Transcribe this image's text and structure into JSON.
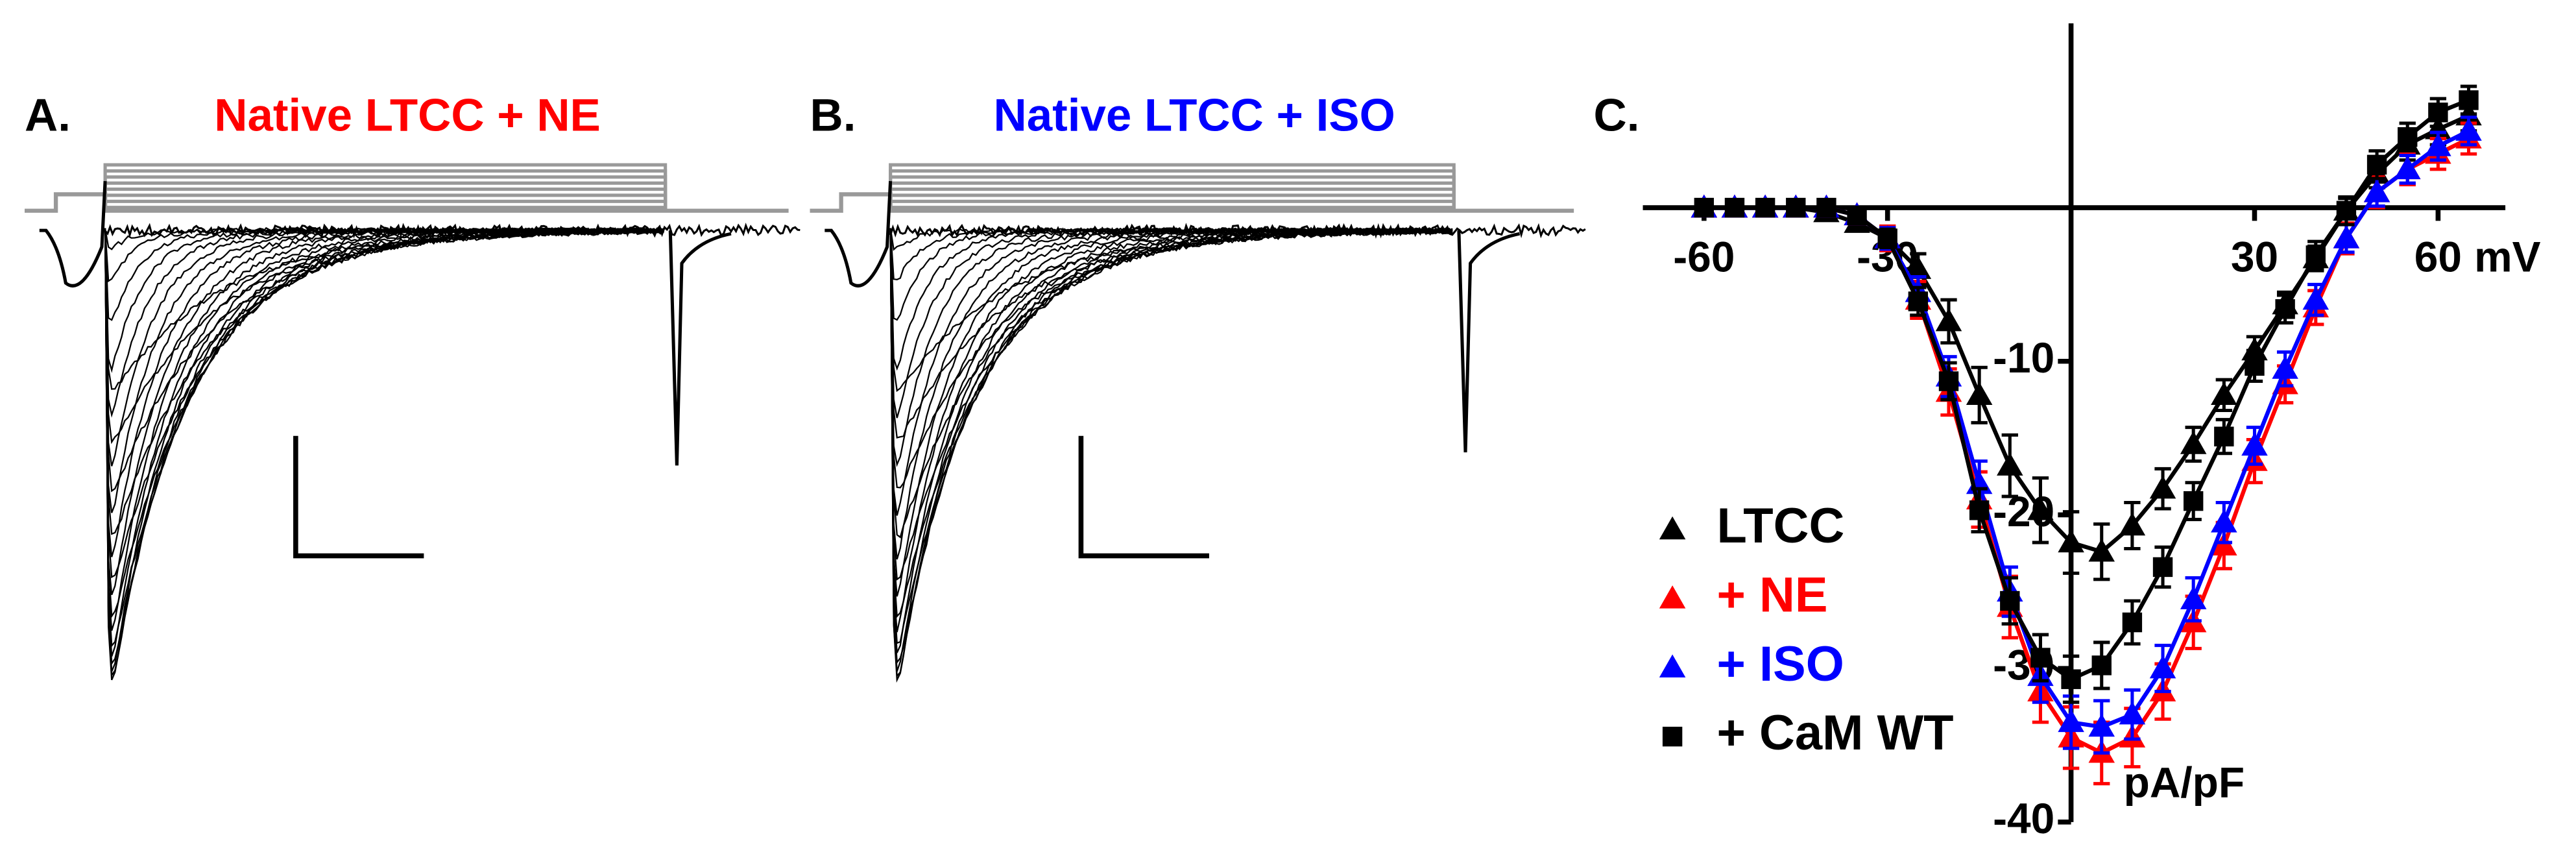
{
  "panels": [
    {
      "label": "A.",
      "title": "Native LTCC + NE",
      "title_color": "#ff0000"
    },
    {
      "label": "B.",
      "title": "Native LTCC + ISO",
      "title_color": "#0000ff"
    }
  ],
  "chart_data": {
    "type": "line",
    "label": "C.",
    "x_unit": "mV",
    "y_unit": "pA/pF",
    "x": [
      -60,
      -55,
      -50,
      -45,
      -40,
      -35,
      -30,
      -25,
      -20,
      -15,
      -10,
      -5,
      0,
      5,
      10,
      15,
      20,
      25,
      30,
      35,
      40,
      45,
      50,
      55,
      60,
      65
    ],
    "xlim": [
      -70,
      71
    ],
    "xticks": [
      -60,
      -30,
      30,
      60
    ],
    "ylim": [
      -40,
      12
    ],
    "yticks": [
      -10,
      -20,
      -30,
      -40
    ],
    "legend": "lower left",
    "series": [
      {
        "name": "LTCC",
        "color": "#000000",
        "marker": "triangle",
        "values": [
          0,
          0,
          0,
          0,
          -0.3,
          -1,
          -2,
          -4,
          -7.4,
          -12.2,
          -16.8,
          -19.7,
          -21.8,
          -22.4,
          -20.7,
          -18.3,
          -15.4,
          -12.2,
          -9.3,
          -6.3,
          -3.3,
          -0.2,
          2.2,
          4.1,
          5.1,
          6.0
        ],
        "errors": [
          0.3,
          0.3,
          0.3,
          0.3,
          0.4,
          0.5,
          0.7,
          1.0,
          1.4,
          1.8,
          2.0,
          2.1,
          2.0,
          1.8,
          1.5,
          1.3,
          1.1,
          1.0,
          0.9,
          0.8,
          0.8,
          0.8,
          0.9,
          1.0,
          1.0,
          1.0
        ]
      },
      {
        "name": "+ NE",
        "color": "#ff0000",
        "marker": "triangle",
        "values": [
          0,
          0,
          0,
          0,
          0,
          -0.5,
          -2,
          -6,
          -12,
          -19,
          -26,
          -31.5,
          -34.5,
          -35.5,
          -34.5,
          -31.5,
          -27,
          -22,
          -16.5,
          -11.5,
          -6.5,
          -2,
          1,
          2.5,
          3.5,
          4.5
        ],
        "errors": [
          0.3,
          0.3,
          0.3,
          0.3,
          0.3,
          0.5,
          0.8,
          1.2,
          1.5,
          1.8,
          2.0,
          2.0,
          2.0,
          2.0,
          1.9,
          1.8,
          1.7,
          1.5,
          1.4,
          1.2,
          1.1,
          1.0,
          1.0,
          1.0,
          1.0,
          1.0
        ]
      },
      {
        "name": "+ ISO",
        "color": "#0000ff",
        "marker": "triangle",
        "values": [
          0,
          0,
          0,
          0,
          0,
          -0.5,
          -2,
          -5.5,
          -11,
          -18,
          -25,
          -30.5,
          -33.5,
          -33.8,
          -33,
          -30,
          -25.5,
          -20.5,
          -15.5,
          -10.5,
          -6,
          -2,
          1,
          2.5,
          4,
          5
        ],
        "errors": [
          0.3,
          0.3,
          0.3,
          0.3,
          0.3,
          0.4,
          0.7,
          1.0,
          1.3,
          1.5,
          1.6,
          1.7,
          1.7,
          1.7,
          1.6,
          1.5,
          1.4,
          1.3,
          1.2,
          1.1,
          1.0,
          0.9,
          0.9,
          0.9,
          0.9,
          0.9
        ]
      },
      {
        "name": "+ CaM WT",
        "color": "#000000",
        "marker": "square",
        "values": [
          0,
          0,
          0,
          0,
          0,
          -0.5,
          -2,
          -6.1,
          -11.3,
          -19.7,
          -25.6,
          -29.3,
          -30.7,
          -29.8,
          -27,
          -23.4,
          -19.1,
          -14.9,
          -10.3,
          -6.6,
          -3.1,
          -0.2,
          2.8,
          4.6,
          6.2,
          7.0
        ],
        "errors": [
          0.3,
          0.3,
          0.3,
          0.3,
          0.3,
          0.4,
          0.6,
          0.9,
          1.2,
          1.4,
          1.5,
          1.5,
          1.5,
          1.5,
          1.4,
          1.3,
          1.2,
          1.1,
          1.0,
          0.9,
          0.9,
          0.9,
          0.9,
          0.9,
          0.9,
          0.9
        ]
      }
    ]
  }
}
